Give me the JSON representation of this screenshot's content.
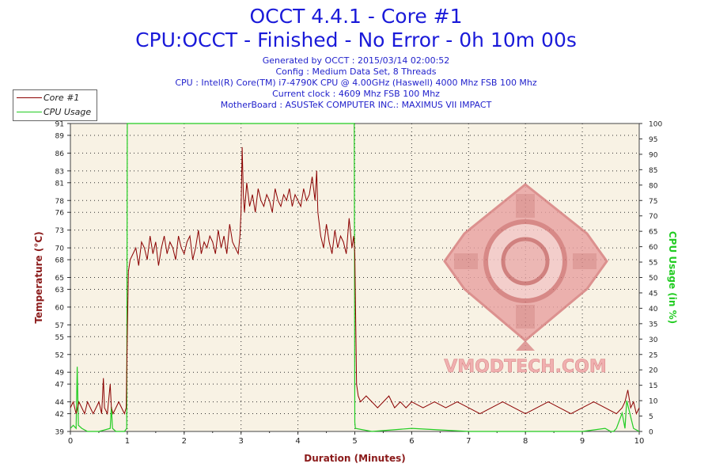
{
  "header": {
    "title": "OCCT 4.4.1 - Core #1",
    "subtitle": "CPU:OCCT - Finished - No Error - 0h 10m 00s",
    "info_lines": [
      "Generated by OCCT : 2015/03/14 02:00:52",
      "Config : Medium Data Set, 8 Threads",
      "CPU : Intel(R) Core(TM) i7-4790K CPU @ 4.00GHz (Haswell) 4000 Mhz FSB 100 Mhz",
      "Current clock : 4609 Mhz FSB 100 Mhz",
      "MotherBoard : ASUSTeK COMPUTER INC.: MAXIMUS VII IMPACT"
    ]
  },
  "watermark": {
    "text": "VMODTECH.COM"
  },
  "chart_data": {
    "type": "line",
    "xlabel": "Duration (Minutes)",
    "ylabel": "Temperature (°C)",
    "y2label": "CPU Usage (in %)",
    "xlim": [
      0,
      10
    ],
    "ylim": [
      39,
      91
    ],
    "y2lim": [
      0,
      100
    ],
    "x_ticks": [
      0,
      1,
      2,
      3,
      4,
      5,
      6,
      7,
      8,
      9,
      10
    ],
    "y_ticks": [
      39,
      42,
      44,
      47,
      49,
      52,
      55,
      57,
      60,
      63,
      65,
      68,
      70,
      73,
      76,
      78,
      81,
      83,
      86,
      89,
      91
    ],
    "y2_ticks": [
      0,
      5,
      10,
      15,
      20,
      25,
      30,
      35,
      40,
      45,
      50,
      55,
      60,
      65,
      70,
      75,
      80,
      85,
      90,
      95,
      100
    ],
    "grid": true,
    "legend_position": "top-left",
    "colors": {
      "temperature": "#8b0000",
      "usage": "#22cc22",
      "plot_bg": "#f8f2e4",
      "axis_label": "#8b1a1a"
    },
    "series": [
      {
        "name": "Core #1",
        "axis": "left",
        "x": [
          0,
          0.05,
          0.1,
          0.15,
          0.2,
          0.25,
          0.3,
          0.35,
          0.4,
          0.45,
          0.5,
          0.55,
          0.58,
          0.6,
          0.65,
          0.7,
          0.72,
          0.75,
          0.8,
          0.85,
          0.9,
          0.95,
          0.98,
          1.0,
          1.02,
          1.05,
          1.1,
          1.15,
          1.2,
          1.25,
          1.3,
          1.35,
          1.4,
          1.45,
          1.5,
          1.55,
          1.6,
          1.65,
          1.7,
          1.75,
          1.8,
          1.85,
          1.9,
          1.95,
          2.0,
          2.05,
          2.1,
          2.15,
          2.2,
          2.25,
          2.3,
          2.35,
          2.4,
          2.45,
          2.5,
          2.55,
          2.6,
          2.65,
          2.7,
          2.75,
          2.8,
          2.85,
          2.9,
          2.95,
          2.98,
          3.0,
          3.02,
          3.04,
          3.06,
          3.1,
          3.15,
          3.2,
          3.25,
          3.3,
          3.35,
          3.4,
          3.45,
          3.5,
          3.55,
          3.6,
          3.65,
          3.7,
          3.75,
          3.8,
          3.85,
          3.9,
          3.95,
          4.0,
          4.05,
          4.1,
          4.15,
          4.2,
          4.25,
          4.3,
          4.33,
          4.35,
          4.4,
          4.45,
          4.5,
          4.55,
          4.6,
          4.65,
          4.7,
          4.75,
          4.8,
          4.85,
          4.9,
          4.95,
          4.98,
          5.0,
          5.03,
          5.06,
          5.1,
          5.2,
          5.3,
          5.4,
          5.5,
          5.6,
          5.7,
          5.8,
          5.9,
          6.0,
          6.2,
          6.4,
          6.6,
          6.8,
          7.0,
          7.2,
          7.4,
          7.6,
          7.8,
          8.0,
          8.2,
          8.4,
          8.6,
          8.8,
          9.0,
          9.2,
          9.4,
          9.6,
          9.7,
          9.75,
          9.8,
          9.85,
          9.9,
          9.95,
          10.0
        ],
        "y": [
          43,
          44,
          42,
          44,
          43,
          42,
          44,
          43,
          42,
          43,
          44,
          42,
          48,
          43,
          42,
          47,
          43,
          42,
          43,
          44,
          43,
          42,
          43,
          55,
          66,
          68,
          69,
          70,
          67,
          71,
          70,
          68,
          72,
          69,
          71,
          67,
          70,
          72,
          69,
          71,
          70,
          68,
          72,
          70,
          69,
          71,
          72,
          68,
          70,
          73,
          69,
          71,
          70,
          72,
          71,
          69,
          73,
          70,
          72,
          69,
          74,
          71,
          70,
          69,
          72,
          76,
          87,
          79,
          76,
          81,
          77,
          79,
          76,
          80,
          78,
          77,
          79,
          78,
          76,
          80,
          78,
          77,
          79,
          78,
          80,
          77,
          79,
          78,
          77,
          80,
          78,
          79,
          82,
          78,
          83,
          76,
          72,
          70,
          74,
          71,
          69,
          73,
          70,
          72,
          71,
          69,
          75,
          70,
          72,
          69,
          47,
          45,
          44,
          45,
          44,
          43,
          44,
          45,
          43,
          44,
          43,
          44,
          43,
          44,
          43,
          44,
          43,
          42,
          43,
          44,
          43,
          42,
          43,
          44,
          43,
          42,
          43,
          44,
          43,
          42,
          43,
          44,
          46,
          43,
          44,
          42,
          43
        ]
      },
      {
        "name": "CPU Usage",
        "axis": "right",
        "x": [
          0,
          0.05,
          0.1,
          0.12,
          0.14,
          0.2,
          0.3,
          0.5,
          0.7,
          0.72,
          0.74,
          0.8,
          0.95,
          0.99,
          1.0,
          1.01,
          1.5,
          2.0,
          3.0,
          4.0,
          4.5,
          4.98,
          4.99,
          5.0,
          5.01,
          5.3,
          6.0,
          7.0,
          8.0,
          9.0,
          9.4,
          9.5,
          9.55,
          9.6,
          9.7,
          9.75,
          9.78,
          9.82,
          9.9,
          10.0
        ],
        "y": [
          1,
          2,
          1,
          21,
          2,
          1,
          0,
          0,
          1,
          8,
          1,
          0,
          0,
          1,
          100,
          100,
          100,
          100,
          100,
          100,
          100,
          100,
          100,
          3,
          1,
          0,
          1,
          0,
          0,
          0,
          1,
          0,
          0,
          1,
          6,
          1,
          10,
          7,
          1,
          0
        ]
      }
    ]
  }
}
